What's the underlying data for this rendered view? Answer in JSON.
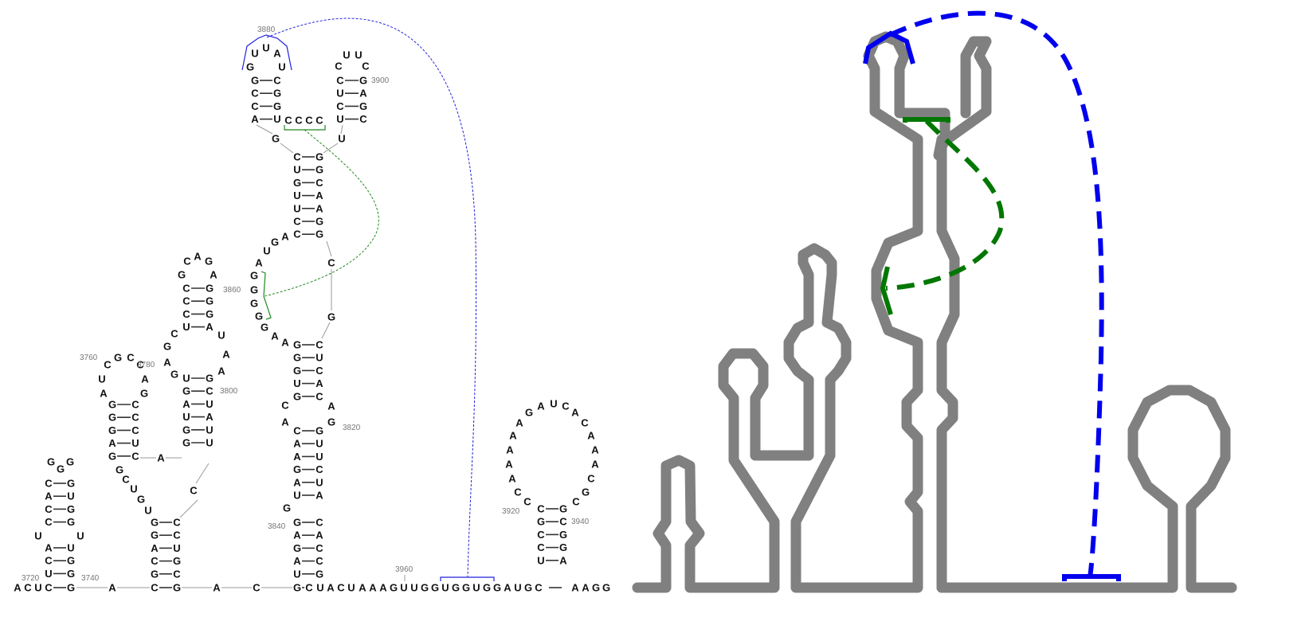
{
  "colors": {
    "base": "#111111",
    "backbone": "#999999",
    "pair": "#333333",
    "label": "#777777",
    "pseudoknot_1": "#2222dd",
    "pseudoknot_2": "#228822",
    "outline": "#808080",
    "outline_pk_1": "#0000ee",
    "outline_pk_2": "#007700"
  },
  "position_labels": [
    "3720",
    "3740",
    "3760",
    "3780",
    "3800",
    "3820",
    "3840",
    "3860",
    "3880",
    "3900",
    "3920",
    "3940",
    "3960"
  ],
  "structure_left": {
    "helices": [
      {
        "name": "helix-3740",
        "left": [
          "U",
          "C",
          "A",
          "C"
        ],
        "right": [
          "G",
          "G",
          "U",
          "G"
        ]
      },
      {
        "name": "helix-3740b",
        "left": [
          "C",
          "A",
          "C",
          "C"
        ],
        "right": [
          "G",
          "U",
          "G",
          "G"
        ]
      },
      {
        "name": "helix-3760",
        "left": [
          "G",
          "G",
          "G",
          "A",
          "G"
        ],
        "right": [
          "C",
          "C",
          "C",
          "U",
          "C"
        ]
      },
      {
        "name": "helix-3780",
        "left": [
          "C",
          "C",
          "C",
          "C"
        ],
        "right": [
          "G",
          "G",
          "G",
          "A"
        ]
      },
      {
        "name": "helix-3800",
        "left": [
          "U",
          "G",
          "A",
          "U",
          "G",
          "G"
        ],
        "right": [
          "G",
          "C",
          "U",
          "A",
          "U",
          "C"
        ]
      },
      {
        "name": "helix-3820",
        "left": [
          "C",
          "A",
          "A",
          "G",
          "A",
          "U",
          "G",
          "G",
          "G",
          "A",
          "U"
        ],
        "right": [
          "G",
          "U",
          "U",
          "C",
          "U",
          "A",
          "C",
          "A",
          "C",
          "A",
          "G"
        ]
      },
      {
        "name": "helix-3840",
        "left": [
          "G",
          "U",
          "G",
          "U",
          "G"
        ],
        "right": [
          "C",
          "U",
          "C",
          "A",
          "C"
        ]
      },
      {
        "name": "helix-3860",
        "left": [
          "C",
          "U",
          "G",
          "U",
          "U",
          "C",
          "C"
        ],
        "right": [
          "G",
          "G",
          "C",
          "A",
          "A",
          "G",
          "G"
        ]
      },
      {
        "name": "helix-3870",
        "left": [
          "G",
          "C",
          "C",
          "A"
        ],
        "right": [
          "C",
          "G",
          "G",
          "U"
        ]
      },
      {
        "name": "helix-3880",
        "left": [
          "C",
          "U",
          "C",
          "U"
        ],
        "right": [
          "G",
          "A",
          "G",
          "C"
        ]
      },
      {
        "name": "helix-3940",
        "left": [
          "C",
          "G",
          "C",
          "C",
          "U"
        ],
        "right": [
          "G",
          "C",
          "G",
          "G",
          "A"
        ]
      }
    ],
    "exterior_sequence": [
      "A",
      "C",
      "U",
      "C",
      "G",
      "A",
      "C",
      "G",
      "A",
      "C",
      "G",
      "C",
      "U",
      "A",
      "C",
      "U",
      "A",
      "A",
      "A",
      "G",
      "U",
      "U",
      "G",
      "G",
      "U",
      "G",
      "G",
      "U",
      "G",
      "G",
      "A",
      "U",
      "G",
      "C",
      "A",
      "A",
      "G",
      "G"
    ]
  }
}
